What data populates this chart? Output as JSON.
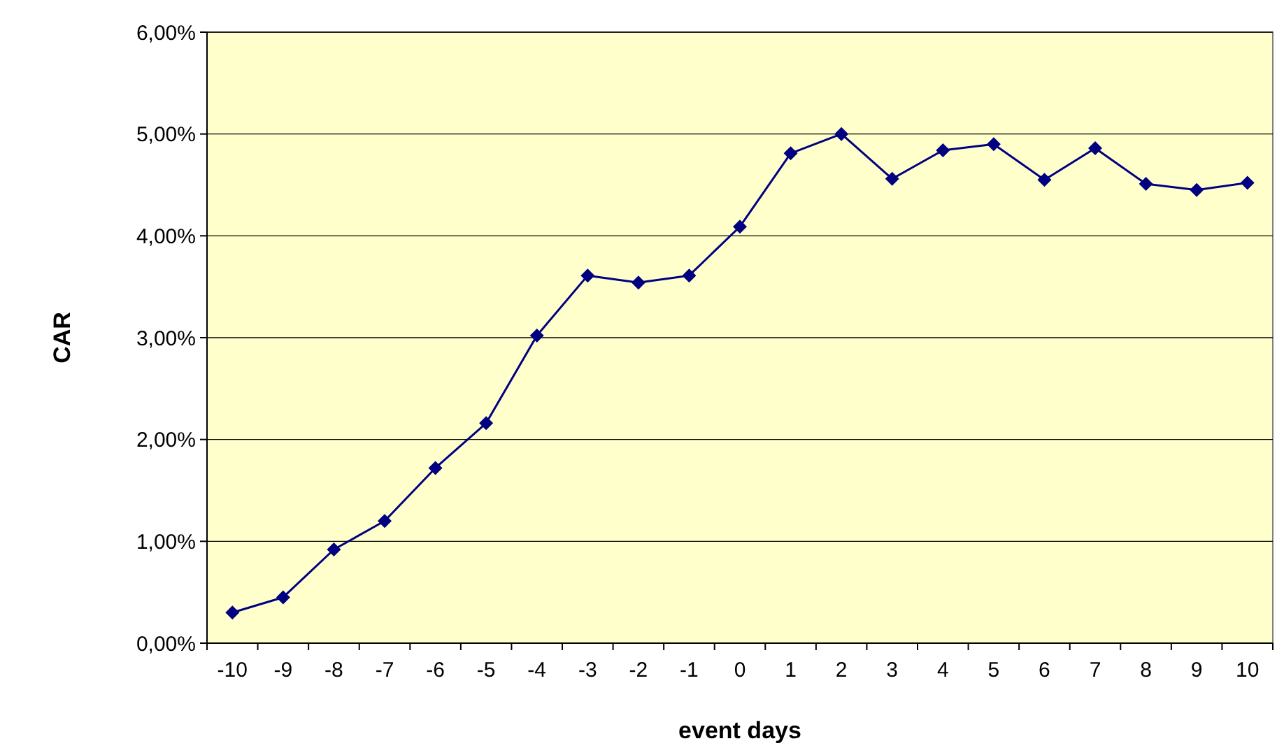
{
  "chart_data": {
    "type": "line",
    "xlabel": "event days",
    "ylabel": "CAR",
    "categories": [
      "-10",
      "-9",
      "-8",
      "-7",
      "-6",
      "-5",
      "-4",
      "-3",
      "-2",
      "-1",
      "0",
      "1",
      "2",
      "3",
      "4",
      "5",
      "6",
      "7",
      "8",
      "9",
      "10"
    ],
    "series": [
      {
        "color": "#000080",
        "values": [
          0.3,
          0.45,
          0.92,
          1.2,
          1.72,
          2.16,
          3.02,
          3.61,
          3.54,
          3.61,
          4.09,
          4.81,
          5.0,
          4.56,
          4.84,
          4.9,
          4.55,
          4.86,
          4.51,
          4.45,
          4.52
        ]
      }
    ],
    "ylim": [
      0,
      6
    ],
    "yticks": [
      {
        "value": 0,
        "label": "0,00%"
      },
      {
        "value": 1,
        "label": "1,00%"
      },
      {
        "value": 2,
        "label": "2,00%"
      },
      {
        "value": 3,
        "label": "3,00%"
      },
      {
        "value": 4,
        "label": "4,00%"
      },
      {
        "value": 5,
        "label": "5,00%"
      },
      {
        "value": 6,
        "label": "6,00%"
      }
    ],
    "grid": "y",
    "marker": "diamond",
    "line_style": "solid"
  }
}
